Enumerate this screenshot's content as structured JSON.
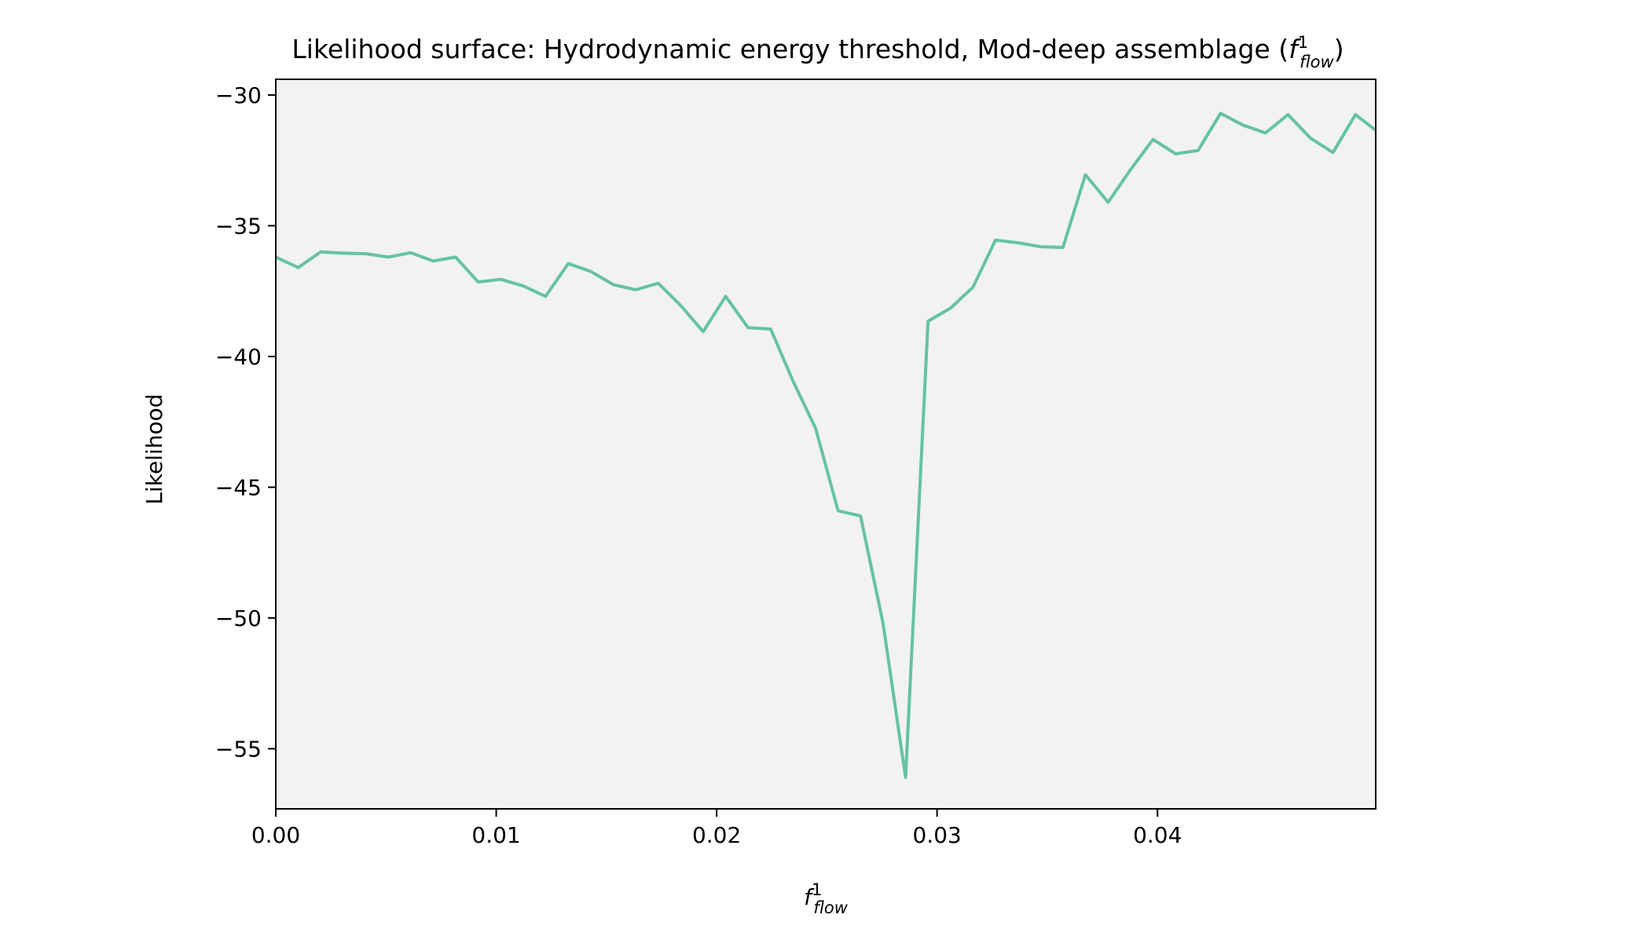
{
  "chart_data": {
    "type": "line",
    "title": {
      "prefix": "Likelihood surface: Hydrodynamic energy threshold, Mod-deep assemblage (",
      "symbol": "f",
      "superscript": "1",
      "subscript": "flow",
      "suffix": ")"
    },
    "xlabel": {
      "symbol": "f",
      "superscript": "1",
      "subscript": "flow"
    },
    "ylabel": "Likelihood",
    "xlim": [
      0.0,
      0.0499
    ],
    "ylim": [
      -57.3,
      -29.4
    ],
    "xticks": [
      0.0,
      0.01,
      0.02,
      0.03,
      0.04
    ],
    "xtick_labels": [
      "0.00",
      "0.01",
      "0.02",
      "0.03",
      "0.04"
    ],
    "yticks": [
      -30,
      -35,
      -40,
      -45,
      -50,
      -55
    ],
    "ytick_labels": [
      "−30",
      "−35",
      "−40",
      "−45",
      "−50",
      "−55"
    ],
    "grid": false,
    "background_color": "#f2f2f2",
    "series": [
      {
        "color": "#66c2a5",
        "x": [
          0.0,
          0.00102,
          0.00204,
          0.00306,
          0.00408,
          0.0051,
          0.00612,
          0.00714,
          0.00816,
          0.00918,
          0.0102,
          0.01122,
          0.01224,
          0.01327,
          0.01429,
          0.01531,
          0.01633,
          0.01735,
          0.01837,
          0.01939,
          0.02041,
          0.02143,
          0.02245,
          0.02347,
          0.02449,
          0.02551,
          0.02653,
          0.02755,
          0.02857,
          0.02959,
          0.03061,
          0.03163,
          0.03265,
          0.03367,
          0.03469,
          0.03571,
          0.03673,
          0.03776,
          0.03878,
          0.0398,
          0.04082,
          0.04184,
          0.04286,
          0.04388,
          0.0449,
          0.04592,
          0.04694,
          0.04796,
          0.04898,
          0.0499
        ],
        "y": [
          -36.2,
          -36.6,
          -36.0,
          -36.05,
          -36.07,
          -36.2,
          -36.03,
          -36.35,
          -36.2,
          -37.15,
          -37.05,
          -37.3,
          -37.7,
          -36.45,
          -36.75,
          -37.25,
          -37.45,
          -37.2,
          -38.05,
          -39.05,
          -37.7,
          -38.9,
          -38.95,
          -40.95,
          -42.75,
          -45.9,
          -46.1,
          -50.2,
          -56.1,
          -38.65,
          -38.15,
          -37.35,
          -35.55,
          -35.65,
          -35.8,
          -35.83,
          -33.05,
          -34.1,
          -32.85,
          -31.7,
          -32.25,
          -32.12,
          -30.7,
          -31.15,
          -31.45,
          -30.75,
          -31.65,
          -32.2,
          -30.75,
          -31.35
        ]
      }
    ]
  }
}
